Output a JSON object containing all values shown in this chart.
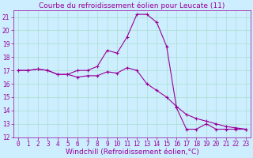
{
  "title": "Courbe du refroidissement éolien pour Leucate (11)",
  "xlabel": "Windchill (Refroidissement éolien,°C)",
  "bg_color": "#cceeff",
  "grid_color": "#aaddcc",
  "line_color": "#990099",
  "hours": [
    0,
    1,
    2,
    3,
    4,
    5,
    6,
    7,
    8,
    9,
    10,
    11,
    12,
    13,
    14,
    15,
    16,
    17,
    18,
    19,
    20,
    21,
    22,
    23
  ],
  "temp_line": [
    17.0,
    17.0,
    17.1,
    17.0,
    16.7,
    16.7,
    17.0,
    17.0,
    17.3,
    18.5,
    18.3,
    19.5,
    21.2,
    21.2,
    20.6,
    18.8,
    14.2,
    12.6,
    12.6,
    13.0,
    12.6,
    12.6,
    12.6,
    12.6
  ],
  "windchill_line": [
    17.0,
    17.0,
    17.1,
    17.0,
    16.7,
    16.7,
    16.5,
    16.6,
    16.6,
    16.9,
    16.8,
    17.2,
    17.0,
    16.0,
    15.5,
    15.0,
    14.3,
    13.7,
    13.4,
    13.2,
    13.0,
    12.8,
    12.7,
    12.6
  ],
  "ylim": [
    12,
    21.5
  ],
  "xlim": [
    -0.5,
    23.5
  ],
  "yticks": [
    12,
    13,
    14,
    15,
    16,
    17,
    18,
    19,
    20,
    21
  ],
  "xticks": [
    0,
    1,
    2,
    3,
    4,
    5,
    6,
    7,
    8,
    9,
    10,
    11,
    12,
    13,
    14,
    15,
    16,
    17,
    18,
    19,
    20,
    21,
    22,
    23
  ],
  "title_fontsize": 6.5,
  "tick_fontsize": 5.5,
  "xlabel_fontsize": 6.5,
  "linewidth": 0.8,
  "markersize": 3,
  "markeredgewidth": 0.8
}
